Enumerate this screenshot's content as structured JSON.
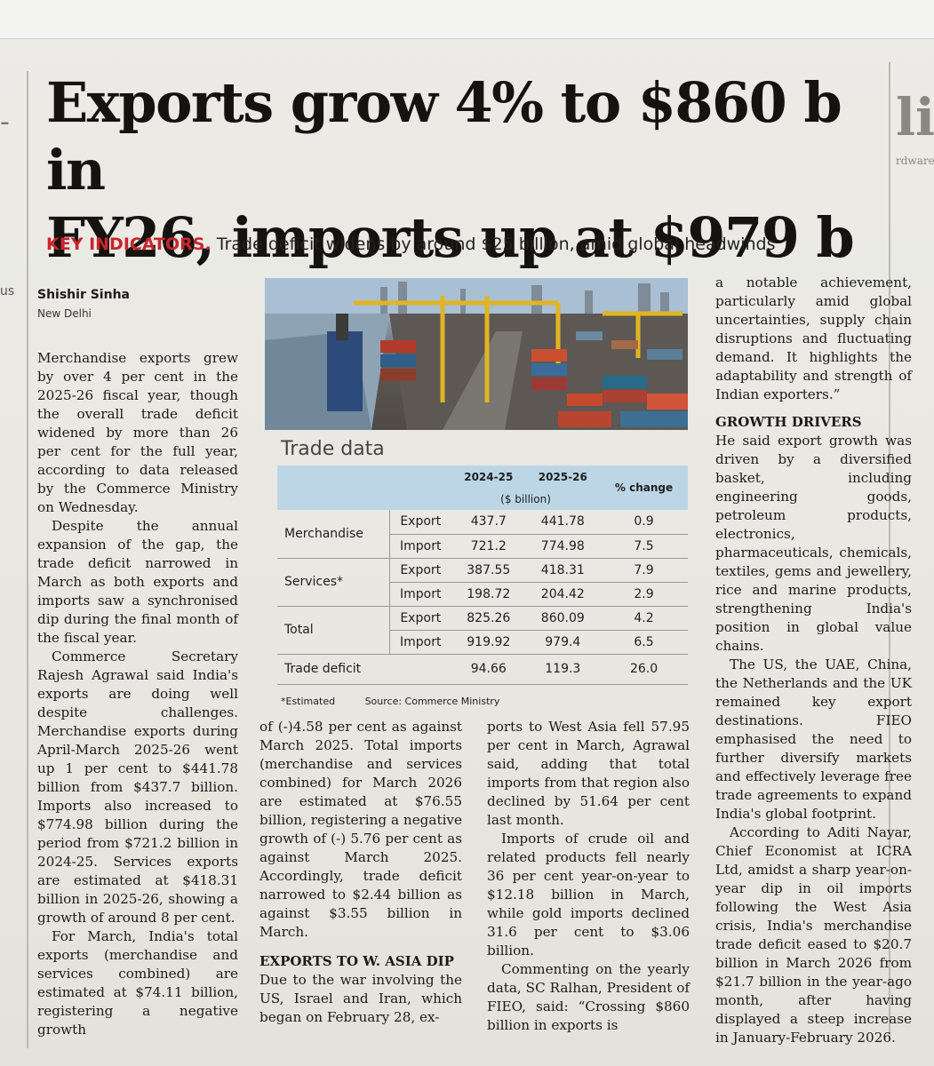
{
  "headline": {
    "line1": "Exports grow 4% to $860 b in",
    "line2": "FY26, imports up at $979 b"
  },
  "kicker": {
    "label": "KEY INDICATORS.",
    "text": "Trade deficit widens by around $25 billion, amid global headwinds"
  },
  "byline": {
    "name": "Shishir Sinha",
    "place": "New Delhi"
  },
  "edge": {
    "left_fragment": "us",
    "right_big": "lit",
    "right_small": "rdware"
  },
  "col1": {
    "p1": "Merchandise exports grew by over 4 per cent in the 2025-26 fiscal year, though the overall trade deficit widened by more than 26 per cent for the full year, according to data released by the Commerce Ministry on Wednesday.",
    "p2": "Despite the annual expansion of the gap, the trade deficit narrowed in March as both exports and imports saw a synchronised dip during the final month of the fiscal year.",
    "p3": "Commerce Secretary Rajesh Agrawal said India's exports are doing well despite challenges. Merchandise exports during April-March 2025-26 went up 1 per cent to $441.78 billion from $437.7 billion. Imports also increased to $774.98 billion during the period from $721.2 billion in 2024-25. Services exports are estimated at $418.31 billion in 2025-26, showing a growth of around 8 per cent.",
    "p4": "For March, India's total exports (merchandise and services combined) are estimated at $74.11 billion, registering a negative growth"
  },
  "col2": {
    "p1": "of (-)4.58 per cent as against March 2025. Total imports (merchandise and services combined) for March 2026 are estimated at $76.55 billion, registering a negative growth of (-) 5.76 per cent as against March 2025. Accordingly, trade deficit narrowed to $2.44 billion as against $3.55 billion in March.",
    "h1": "EXPORTS TO W. ASIA DIP",
    "p2": "Due to the war involving the US, Israel and Iran, which began on February 28, ex-"
  },
  "col3": {
    "p1": "ports to West Asia fell 57.95 per cent in March, Agrawal said, adding that total imports from that region also declined by 51.64 per cent last month.",
    "p2": "Imports of crude oil and related products fell nearly 36 per cent year-on-year to $12.18 billion in March, while gold imports declined 31.6 per cent to $3.06 billion.",
    "p3": "Commenting on the yearly data, SC Ralhan, President of FIEO, said: “Crossing $860 billion in exports is"
  },
  "col4": {
    "p1": "a notable achievement, particularly amid global uncertainties, supply chain disruptions and fluctuating demand. It highlights the adaptability and strength of Indian exporters.”",
    "h1": "GROWTH DRIVERS",
    "p2": "He said export growth was driven by a diversified basket, including engineering goods, petroleum products, electronics, pharmaceuticals, chemicals, textiles, gems and jewellery, rice and marine products, strengthening India's position in global value chains.",
    "p3": "The US, the UAE, China, the Netherlands and the UK remained key export destinations. FIEO emphasised the need to further diversify markets and effectively leverage free trade agreements to expand India's global footprint.",
    "p4": "According to Aditi Nayar, Chief Economist at ICRA Ltd, amidst a sharp year-on-year dip in oil imports following the West Asia crisis, India's merchandise trade deficit eased to $20.7 billion in March 2026 from $21.7 billion in the year-ago month, after having displayed a steep increase in January-February 2026."
  },
  "chart_data": {
    "type": "table",
    "title": "Trade data",
    "headers": [
      "",
      "",
      "2024-25",
      "2025-26",
      "% change"
    ],
    "unit_label": "($ billion)",
    "rows": [
      {
        "category": "Merchandise",
        "kind": "Export",
        "y2024_25": "437.7",
        "y2025_26": "441.78",
        "change": "0.9"
      },
      {
        "category": "",
        "kind": "Import",
        "y2024_25": "721.2",
        "y2025_26": "774.98",
        "change": "7.5"
      },
      {
        "category": "Services*",
        "kind": "Export",
        "y2024_25": "387.55",
        "y2025_26": "418.31",
        "change": "7.9"
      },
      {
        "category": "",
        "kind": "Import",
        "y2024_25": "198.72",
        "y2025_26": "204.42",
        "change": "2.9"
      },
      {
        "category": "Total",
        "kind": "Export",
        "y2024_25": "825.26",
        "y2025_26": "860.09",
        "change": "4.2"
      },
      {
        "category": "",
        "kind": "Import",
        "y2024_25": "919.92",
        "y2025_26": "979.4",
        "change": "6.5"
      },
      {
        "category": "Trade deficit",
        "kind": "",
        "y2024_25": "94.66",
        "y2025_26": "119.3",
        "change": "26.0"
      }
    ],
    "footnote": "*Estimated",
    "source": "Source: Commerce Ministry"
  },
  "colors": {
    "kicker_red": "#c9252c",
    "table_header": "#bcd6e6"
  }
}
